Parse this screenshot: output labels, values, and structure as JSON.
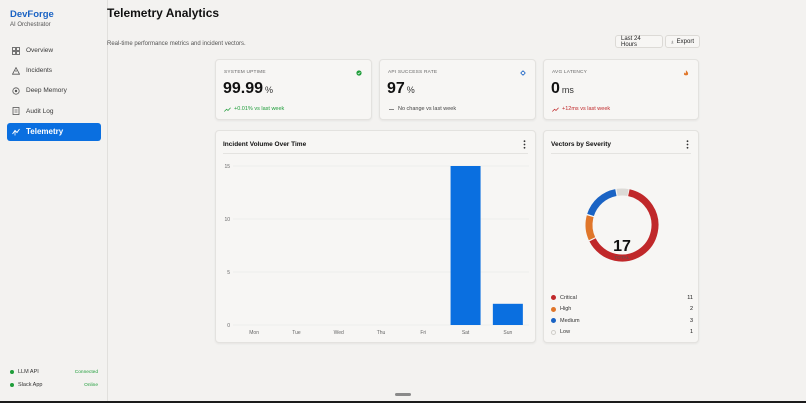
{
  "sidebar": {
    "brand_name": "DevForge",
    "brand_sub": "AI Orchestrator",
    "items": [
      {
        "label": "Overview",
        "icon": "grid-icon"
      },
      {
        "label": "Incidents",
        "icon": "warning-icon"
      },
      {
        "label": "Deep Memory",
        "icon": "memory-icon"
      },
      {
        "label": "Audit Log",
        "icon": "log-icon"
      },
      {
        "label": "Telemetry",
        "icon": "telemetry-icon",
        "active": true
      }
    ],
    "integrations": [
      {
        "name": "LLM API",
        "state": "Connected"
      },
      {
        "name": "Slack App",
        "state": "Online"
      }
    ]
  },
  "header": {
    "title": "Telemetry Analytics",
    "subtitle": "Real-time performance metrics and incident vectors.",
    "range_label": "Last 24 Hours",
    "export_label": "Export"
  },
  "kpis": [
    {
      "label": "SYSTEM UPTIME",
      "value": "99.99",
      "unit": "%",
      "trend": "+0.01% vs last week",
      "trend_color": "#1f9d3a",
      "icon": "status-dot-icon"
    },
    {
      "label": "API SUCCESS RATE",
      "value": "97",
      "unit": "%",
      "trend": "No change vs last week",
      "trend_color": "#444444",
      "icon": "target-icon"
    },
    {
      "label": "AVG LATENCY",
      "value": "0",
      "unit": "ms",
      "trend": "+12ms vs last week",
      "trend_color": "#c0282a",
      "icon": "flame-icon"
    }
  ],
  "incident_chart": {
    "title": "Incident Volume Over Time"
  },
  "severity_chart": {
    "title": "Vectors by Severity",
    "total": "17",
    "total_label": "TOTAL",
    "legend": [
      {
        "name": "Critical",
        "count": "11",
        "color": "#c0282a"
      },
      {
        "name": "High",
        "count": "2",
        "color": "#e0762a"
      },
      {
        "name": "Medium",
        "count": "3",
        "color": "#1a63c4"
      },
      {
        "name": "Low",
        "count": "1",
        "color": "#dcdad6"
      }
    ]
  },
  "colors": {
    "accent": "#0a6fe0",
    "success": "#1f9d3a",
    "danger": "#c0282a"
  },
  "chart_data": [
    {
      "type": "bar",
      "title": "Incident Volume Over Time",
      "categories": [
        "Mon",
        "Tue",
        "Wed",
        "Thu",
        "Fri",
        "Sat",
        "Sun"
      ],
      "values": [
        0,
        0,
        0,
        0,
        0,
        15,
        2
      ],
      "yticks": [
        "0",
        "5",
        "10",
        "15"
      ],
      "ylim": [
        0,
        15
      ],
      "xlabel": "",
      "ylabel": "",
      "grid": true,
      "color": "#0a6fe0"
    },
    {
      "type": "pie",
      "title": "Vectors by Severity",
      "labels": [
        "Critical",
        "High",
        "Medium",
        "Low"
      ],
      "values": [
        11,
        2,
        3,
        1
      ],
      "colors": [
        "#c0282a",
        "#e0762a",
        "#1a63c4",
        "#dcdad6"
      ],
      "donut": true
    }
  ]
}
